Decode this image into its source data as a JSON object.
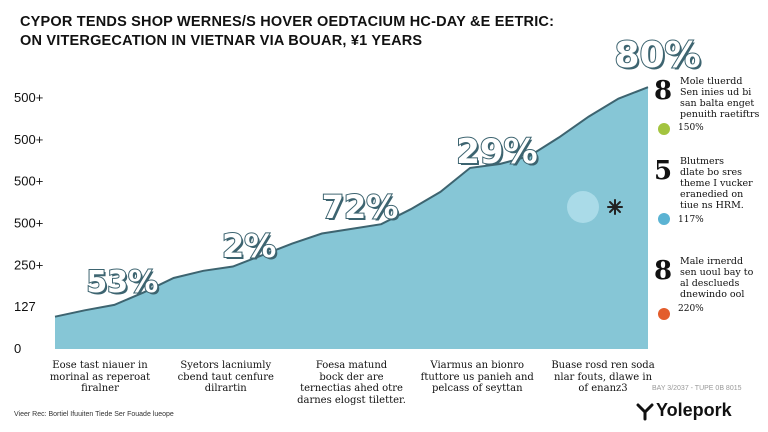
{
  "chart_data": {
    "type": "area",
    "title": "CYPOR TENDS SHOP WERNES/S HOVER OEDTACIUM HC-DAY &E EETRIC:",
    "subtitle": "ON VITERGECATION IN VIETNAR VIA BOUAR, ¥1 YEARS",
    "y_tick_labels": [
      "500+",
      "500+",
      "500+",
      "500+",
      "250+",
      "127",
      "0"
    ],
    "ylim": [
      0,
      7
    ],
    "x": [
      0,
      0.5,
      1,
      1.5,
      2,
      2.5,
      3,
      3.5,
      4,
      4.5,
      5,
      5.5,
      6,
      6.5,
      7,
      7.5,
      8,
      8.5,
      9,
      9.5,
      10
    ],
    "values": [
      0.9,
      1.08,
      1.23,
      1.58,
      1.98,
      2.18,
      2.3,
      2.62,
      2.94,
      3.22,
      3.35,
      3.48,
      3.9,
      4.38,
      5.05,
      5.16,
      5.38,
      5.9,
      6.48,
      6.98,
      7.3
    ],
    "categories": [
      [
        "Eose tast niauer in",
        "morinal as reperoat",
        "firalner"
      ],
      [
        "Syetors lacniumly",
        "cbend taut cenfure",
        "dilrartin"
      ],
      [
        "Foesa matund",
        "bock der are",
        "ternectias ahed otre",
        "darnes elogst tiletter."
      ],
      [
        "Viarmus an bionro",
        "ftuttore us panieh and",
        "pelcass of seyttan"
      ],
      [
        "Buase rosd ren soda",
        "nlar fouts, dlawe in",
        "of enanz3"
      ]
    ],
    "point_labels": [
      {
        "text": "53%",
        "x": 1.0,
        "y": 1.85,
        "size": 30
      },
      {
        "text": "2%",
        "x": 3.15,
        "y": 2.88,
        "size": 32
      },
      {
        "text": "72%",
        "x": 5.0,
        "y": 3.95,
        "size": 32
      },
      {
        "text": "29%",
        "x": 7.3,
        "y": 5.48,
        "size": 34
      },
      {
        "text": "80%",
        "x": 10.0,
        "y": 8.15,
        "size": 36
      }
    ],
    "grid": false,
    "legend": "right"
  },
  "colors": {
    "area_fill": "#86c6d6",
    "area_line": "#3d6470",
    "text": "#111111",
    "dot_green": "#a3c43f",
    "dot_blue": "#5bb3d3",
    "dot_orange": "#e35d2c"
  },
  "side_items": [
    {
      "number": "8",
      "lines": [
        "Mole tluerdd",
        "Sen inies ud bi",
        "san balta enget",
        "penuith raetiftrs"
      ],
      "pct": "150%",
      "dot": "green"
    },
    {
      "number": "5",
      "lines": [
        "Blutmers",
        "dlate bo sres",
        "theme I vucker",
        "eranedied on",
        "tiue ns HRM."
      ],
      "pct": "117%",
      "dot": "blue"
    },
    {
      "number": "8",
      "lines": [
        "Male irnerdd",
        "sen uoul bay to",
        "al desclueds",
        "dnewindo ool"
      ],
      "pct": "220%",
      "dot": "orange"
    }
  ],
  "footer": {
    "source": "Vieer Rec: Bortiel Ifuuiten Tiede Ser Fouade lueope",
    "date": "BAY 3/2037 - TUPE 0B 8015",
    "brand": "Yolepork"
  },
  "marker_icon": "sparkle-icon"
}
